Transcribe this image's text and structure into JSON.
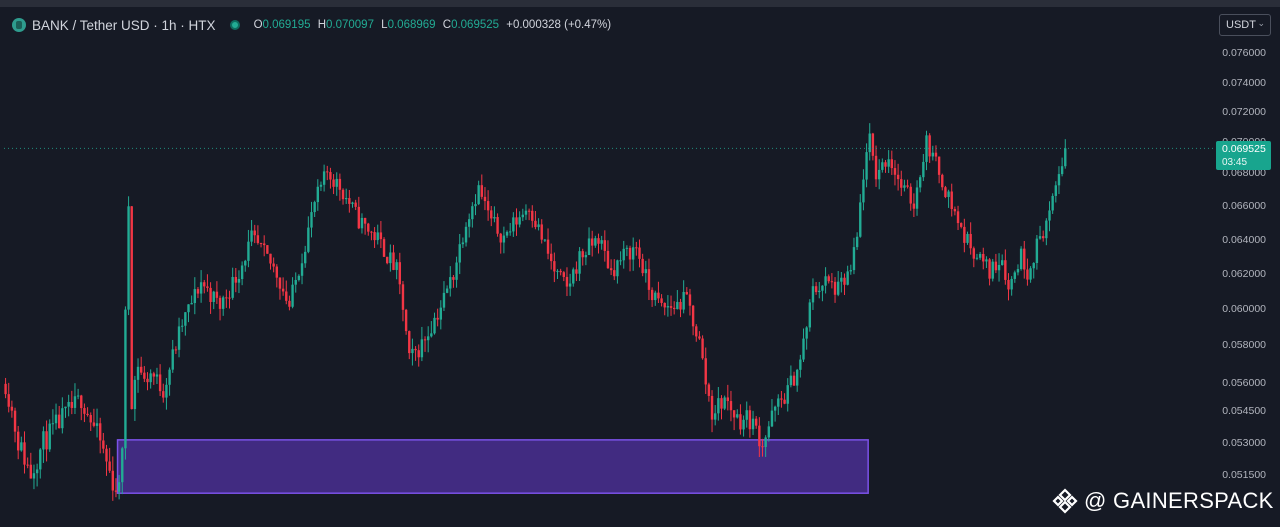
{
  "header": {
    "symbol": "BANK / Tether USD · 1h · HTX",
    "o_label": "O",
    "o_value": "0.069195",
    "h_label": "H",
    "h_value": "0.070097",
    "l_label": "L",
    "l_value": "0.068969",
    "c_label": "C",
    "c_value": "0.069525",
    "change": "+0.000328 (+0.47%)"
  },
  "currency_select": "USDT",
  "price_tag": {
    "price": "0.069525",
    "countdown": "03:45"
  },
  "watermark": "@ GAINERSPACK",
  "colors": {
    "background": "#161a25",
    "up": "#22ab94",
    "down": "#f23645",
    "zone": "#6a3fd4",
    "tag": "#18a58e"
  },
  "chart_data": {
    "type": "candlestick",
    "y_axis": {
      "ticks": [
        0.076,
        0.074,
        0.072,
        0.07,
        0.068,
        0.066,
        0.064,
        0.062,
        0.06,
        0.058,
        0.056,
        0.0545,
        0.053,
        0.0515
      ],
      "tick_labels": [
        "0.076000",
        "0.074000",
        "0.072000",
        "0.070000",
        "0.068000",
        "0.066000",
        "0.064000",
        "0.062000",
        "0.060000",
        "0.058000",
        "0.056000",
        "0.054500",
        "0.053000",
        "0.051500"
      ]
    },
    "last_price": 0.069525,
    "demand_zone": {
      "x_start": 36,
      "x_end": 273,
      "y_top": 0.0531,
      "y_bottom": 0.0506
    },
    "price_path": [
      [
        0,
        0.0559
      ],
      [
        4,
        0.053
      ],
      [
        8,
        0.0515
      ],
      [
        12,
        0.053
      ],
      [
        18,
        0.0541
      ],
      [
        24,
        0.0551
      ],
      [
        30,
        0.053
      ],
      [
        34,
        0.0511
      ],
      [
        36,
        0.0507
      ],
      [
        37,
        0.053
      ],
      [
        38,
        0.0595
      ],
      [
        39,
        0.0661
      ],
      [
        40,
        0.0551
      ],
      [
        42,
        0.057
      ],
      [
        44,
        0.056
      ],
      [
        46,
        0.0565
      ],
      [
        50,
        0.0556
      ],
      [
        56,
        0.0591
      ],
      [
        62,
        0.0615
      ],
      [
        68,
        0.0601
      ],
      [
        74,
        0.0621
      ],
      [
        78,
        0.064
      ],
      [
        82,
        0.0631
      ],
      [
        86,
        0.062
      ],
      [
        90,
        0.0601
      ],
      [
        94,
        0.063
      ],
      [
        98,
        0.0661
      ],
      [
        102,
        0.068
      ],
      [
        106,
        0.0671
      ],
      [
        112,
        0.0651
      ],
      [
        118,
        0.064
      ],
      [
        124,
        0.0621
      ],
      [
        126,
        0.06
      ],
      [
        128,
        0.0571
      ],
      [
        132,
        0.058
      ],
      [
        138,
        0.0601
      ],
      [
        142,
        0.062
      ],
      [
        146,
        0.0651
      ],
      [
        150,
        0.067
      ],
      [
        154,
        0.065
      ],
      [
        158,
        0.0641
      ],
      [
        162,
        0.0651
      ],
      [
        166,
        0.066
      ],
      [
        170,
        0.0641
      ],
      [
        174,
        0.0621
      ],
      [
        178,
        0.0611
      ],
      [
        182,
        0.0629
      ],
      [
        188,
        0.0641
      ],
      [
        192,
        0.0621
      ],
      [
        196,
        0.063
      ],
      [
        200,
        0.0635
      ],
      [
        204,
        0.0611
      ],
      [
        208,
        0.06
      ],
      [
        212,
        0.0601
      ],
      [
        216,
        0.0605
      ],
      [
        220,
        0.0581
      ],
      [
        222,
        0.056
      ],
      [
        224,
        0.0544
      ],
      [
        228,
        0.0551
      ],
      [
        232,
        0.0541
      ],
      [
        236,
        0.0541
      ],
      [
        240,
        0.053
      ],
      [
        244,
        0.0545
      ],
      [
        248,
        0.0555
      ],
      [
        252,
        0.0571
      ],
      [
        254,
        0.059
      ],
      [
        256,
        0.061
      ],
      [
        260,
        0.0615
      ],
      [
        264,
        0.061
      ],
      [
        268,
        0.0621
      ],
      [
        270,
        0.064
      ],
      [
        272,
        0.0679
      ],
      [
        274,
        0.07
      ],
      [
        276,
        0.0679
      ],
      [
        280,
        0.069
      ],
      [
        284,
        0.0671
      ],
      [
        288,
        0.0661
      ],
      [
        292,
        0.07
      ],
      [
        296,
        0.068
      ],
      [
        300,
        0.066
      ],
      [
        304,
        0.0641
      ],
      [
        308,
        0.0631
      ],
      [
        312,
        0.0621
      ],
      [
        316,
        0.063
      ],
      [
        318,
        0.0611
      ],
      [
        322,
        0.0631
      ],
      [
        324,
        0.0621
      ],
      [
        328,
        0.0641
      ],
      [
        330,
        0.065
      ],
      [
        332,
        0.066
      ],
      [
        334,
        0.068
      ],
      [
        336,
        0.0695
      ]
    ]
  }
}
